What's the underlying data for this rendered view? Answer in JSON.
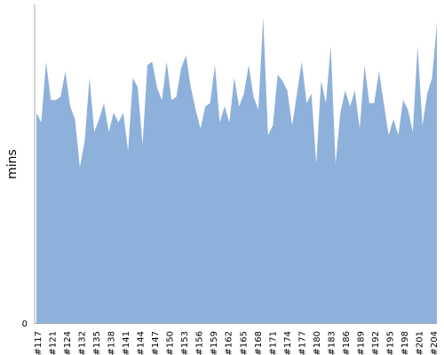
{
  "chart_data": {
    "type": "area",
    "ylabel": "mins",
    "yticks": [
      "0"
    ],
    "xticks": [
      "#117",
      "#121",
      "#124",
      "#132",
      "#135",
      "#138",
      "#141",
      "#144",
      "#147",
      "#150",
      "#153",
      "#156",
      "#159",
      "#162",
      "#165",
      "#168",
      "#171",
      "#174",
      "#177",
      "#180",
      "#183",
      "#186",
      "#189",
      "#192",
      "#195",
      "#198",
      "#201",
      "#204"
    ],
    "ylim": [
      0,
      100
    ],
    "grid": false,
    "color": "#8eb1db",
    "axis_color": "#aaaaaa",
    "values": [
      66,
      63,
      82,
      70,
      70,
      71,
      79,
      68,
      64,
      49,
      57,
      77,
      60,
      64,
      69,
      60,
      66,
      63,
      66,
      54,
      77,
      74,
      56,
      81,
      82,
      74,
      70,
      82,
      70,
      71,
      80,
      84,
      74,
      67,
      61,
      68,
      69,
      81,
      63,
      68,
      63,
      77,
      68,
      72,
      81,
      71,
      67,
      96,
      59,
      62,
      78,
      76,
      73,
      62,
      72,
      82,
      69,
      72,
      50,
      76,
      69,
      87,
      50,
      66,
      73,
      68,
      73,
      61,
      81,
      69,
      69,
      79,
      69,
      59,
      64,
      59,
      70,
      67,
      60,
      87,
      62,
      72,
      77,
      94
    ]
  }
}
